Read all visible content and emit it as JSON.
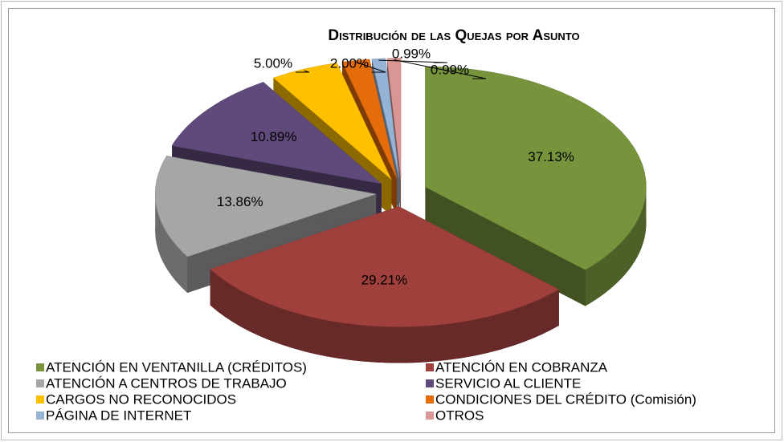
{
  "chart_data": {
    "type": "pie",
    "title": "Distribución de las Quejas por Asunto",
    "categories": [
      "ATENCIÓN EN VENTANILLA (CRÉDITOS)",
      "ATENCIÓN EN COBRANZA",
      "ATENCIÓN A CENTROS DE TRABAJO",
      "SERVICIO AL CLIENTE",
      "CARGOS NO RECONOCIDOS",
      "CONDICIONES DEL CRÉDITO (Comisión)",
      "PÁGINA DE INTERNET",
      "OTROS"
    ],
    "values": [
      37.13,
      29.21,
      13.86,
      10.89,
      5.0,
      2.0,
      0.99,
      0.99
    ],
    "value_labels": [
      "37.13%",
      "29.21%",
      "13.86%",
      "10.89%",
      "5.00%",
      "2.00%",
      "0.99%",
      "0.99%"
    ],
    "colors": [
      "#77933c",
      "#a0403d",
      "#a6a6a6",
      "#604a7b",
      "#ffc000",
      "#e46c0a",
      "#95b3d7",
      "#d99694"
    ],
    "legend": "bottom"
  }
}
